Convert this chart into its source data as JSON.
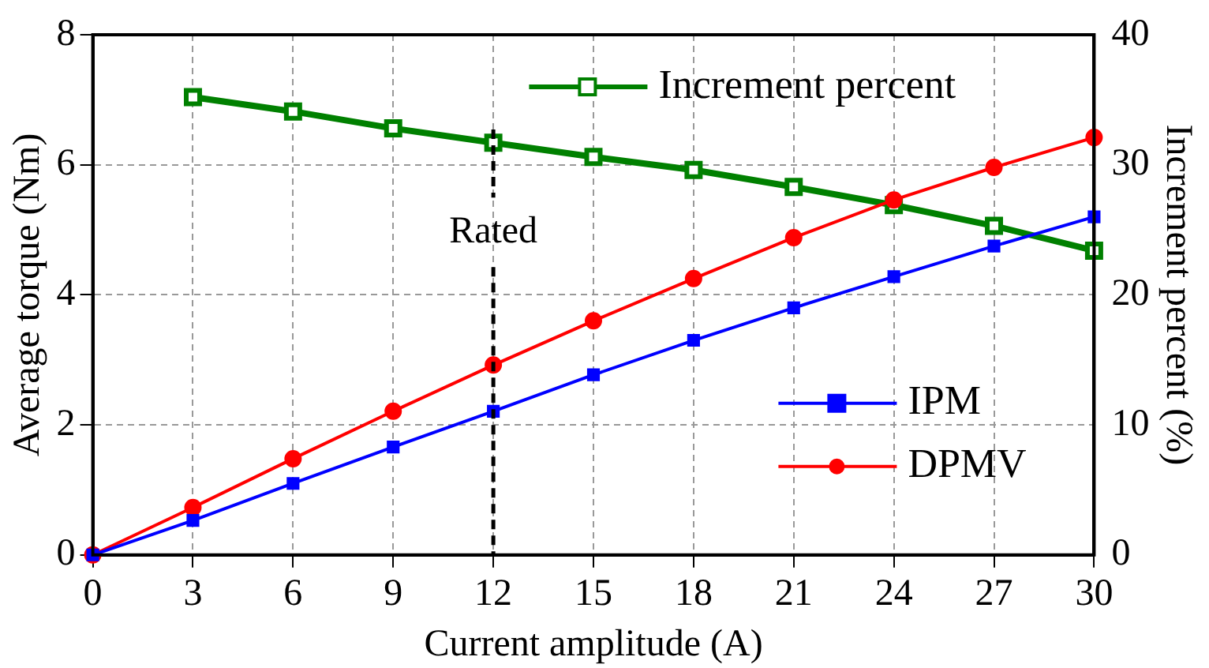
{
  "chart_data": {
    "type": "line",
    "xlabel": "Current amplitude (A)",
    "ylabel": "Average torque (Nm)",
    "y2label": "Increment percent (%)",
    "x": [
      0,
      3,
      6,
      9,
      12,
      15,
      18,
      21,
      24,
      27,
      30
    ],
    "series": [
      {
        "name": "IPM",
        "color": "#0000ff",
        "marker": "square",
        "values": [
          0,
          0.53,
          1.1,
          1.66,
          2.21,
          2.77,
          3.3,
          3.8,
          4.28,
          4.75,
          5.2
        ]
      },
      {
        "name": "DPMV",
        "color": "#ff0000",
        "marker": "circle",
        "values": [
          0,
          0.73,
          1.48,
          2.21,
          2.92,
          3.6,
          4.25,
          4.88,
          5.46,
          5.96,
          6.42
        ]
      },
      {
        "name": "Increment percent",
        "color": "#008000",
        "marker": "square",
        "axis": "y2",
        "x": [
          3,
          6,
          9,
          12,
          15,
          18,
          21,
          24,
          27,
          30
        ],
        "values": [
          35.2,
          34.1,
          32.8,
          31.7,
          30.6,
          29.6,
          28.3,
          26.9,
          25.3,
          23.4
        ]
      }
    ],
    "xlim": [
      0,
      30
    ],
    "xticks": [
      0,
      3,
      6,
      9,
      12,
      15,
      18,
      21,
      24,
      27,
      30
    ],
    "ylim": [
      0,
      8
    ],
    "yticks": [
      0,
      2,
      4,
      6,
      8
    ],
    "y2lim": [
      0,
      40
    ],
    "y2ticks": [
      0,
      10,
      20,
      30,
      40
    ],
    "ref_lines": [
      {
        "axis": "x",
        "value": 12,
        "label": "Rated",
        "line_style": "dashed",
        "color": "#000000"
      }
    ],
    "grid": true,
    "legend": "right"
  }
}
